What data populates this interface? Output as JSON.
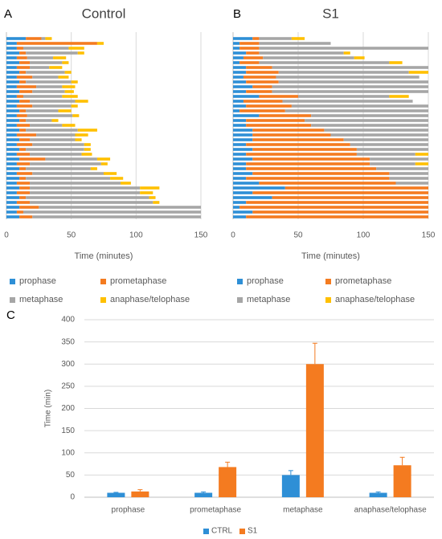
{
  "chart_data": [
    {
      "type": "bar",
      "orientation": "horizontal",
      "stacked": true,
      "panel": "A",
      "title": "Control",
      "x_label": "Time (minutes)",
      "xlim": [
        0,
        150
      ],
      "xticks": [
        0,
        50,
        100,
        150
      ],
      "grid": true,
      "series": [
        {
          "name": "prophase",
          "color": "#2e8fd6",
          "values": [
            15,
            8,
            8,
            10,
            8,
            10,
            8,
            10,
            8,
            10,
            8,
            10,
            8,
            10,
            8,
            10,
            8,
            10,
            8,
            10,
            8,
            10,
            8,
            10,
            8,
            10,
            8,
            10,
            8,
            10,
            8,
            10,
            8,
            10,
            8,
            10,
            8,
            10
          ]
        },
        {
          "name": "prometaphase",
          "color": "#f47b20",
          "values": [
            12,
            62,
            5,
            5,
            8,
            8,
            10,
            5,
            12,
            5,
            15,
            10,
            5,
            8,
            12,
            5,
            8,
            5,
            10,
            5,
            15,
            8,
            12,
            5,
            10,
            20,
            10,
            5,
            12,
            5,
            10,
            8,
            10,
            5,
            10,
            15,
            5,
            10
          ]
        },
        {
          "name": "metaphase",
          "color": "#a6a6a6",
          "values": [
            3,
            0,
            35,
            40,
            20,
            25,
            15,
            30,
            20,
            35,
            20,
            25,
            30,
            35,
            30,
            25,
            35,
            20,
            25,
            40,
            30,
            35,
            40,
            45,
            40,
            40,
            55,
            50,
            55,
            65,
            70,
            85,
            85,
            95,
            95,
            125,
            137,
            130
          ]
        },
        {
          "name": "anaphase/telophase",
          "color": "#ffc000",
          "values": [
            5,
            5,
            12,
            5,
            10,
            5,
            10,
            5,
            8,
            5,
            10,
            7,
            12,
            10,
            5,
            10,
            5,
            5,
            10,
            15,
            10,
            5,
            5,
            5,
            8,
            10,
            5,
            5,
            10,
            10,
            8,
            15,
            10,
            5,
            5,
            0,
            0,
            0
          ]
        }
      ]
    },
    {
      "type": "bar",
      "orientation": "horizontal",
      "stacked": true,
      "panel": "B",
      "title": "S1",
      "x_label": "Time (minutes)",
      "xlim": [
        0,
        150
      ],
      "xticks": [
        0,
        50,
        100,
        150
      ],
      "grid": true,
      "series": [
        {
          "name": "prophase",
          "color": "#2e8fd6",
          "values": [
            15,
            5,
            5,
            10,
            8,
            5,
            10,
            10,
            8,
            10,
            15,
            10,
            20,
            8,
            10,
            5,
            20,
            10,
            10,
            15,
            15,
            15,
            10,
            15,
            10,
            15,
            10,
            10,
            15,
            10,
            20,
            40,
            15,
            30,
            10,
            5,
            15,
            10
          ]
        },
        {
          "name": "prometaphase",
          "color": "#f47b20",
          "values": [
            5,
            15,
            15,
            10,
            15,
            15,
            20,
            25,
            25,
            25,
            15,
            20,
            30,
            30,
            35,
            35,
            40,
            45,
            50,
            55,
            60,
            70,
            80,
            80,
            85,
            90,
            95,
            100,
            105,
            110,
            105,
            110,
            135,
            120,
            140,
            145,
            135,
            140
          ]
        },
        {
          "name": "metaphase",
          "color": "#a6a6a6",
          "values": [
            25,
            55,
            130,
            65,
            70,
            100,
            120,
            100,
            110,
            115,
            120,
            120,
            70,
            100,
            105,
            110,
            90,
            95,
            90,
            80,
            75,
            65,
            60,
            55,
            45,
            45,
            35,
            40,
            30,
            30,
            25,
            0,
            0,
            0,
            0,
            0,
            0,
            0
          ]
        },
        {
          "name": "anaphase/telophase",
          "color": "#ffc000",
          "values": [
            10,
            0,
            0,
            5,
            8,
            10,
            0,
            15,
            0,
            0,
            0,
            0,
            15,
            0,
            0,
            0,
            0,
            0,
            0,
            0,
            0,
            0,
            0,
            0,
            10,
            0,
            10,
            0,
            0,
            0,
            0,
            0,
            0,
            0,
            0,
            0,
            0,
            0
          ]
        }
      ]
    },
    {
      "type": "bar",
      "orientation": "vertical",
      "panel": "C",
      "y_label": "Time (min)",
      "categories": [
        "prophase",
        "prometaphase",
        "metaphase",
        "anaphase/telophase"
      ],
      "ylim": [
        0,
        400
      ],
      "yticks": [
        0,
        50,
        100,
        150,
        200,
        250,
        300,
        350,
        400
      ],
      "grid": true,
      "series": [
        {
          "name": "CTRL",
          "color": "#2e8fd6",
          "values": [
            10,
            10,
            50,
            10
          ],
          "errors": [
            1,
            2,
            10,
            2
          ]
        },
        {
          "name": "S1",
          "color": "#f47b20",
          "values": [
            13,
            68,
            300,
            72
          ],
          "errors": [
            4,
            11,
            47,
            18
          ]
        }
      ]
    }
  ]
}
